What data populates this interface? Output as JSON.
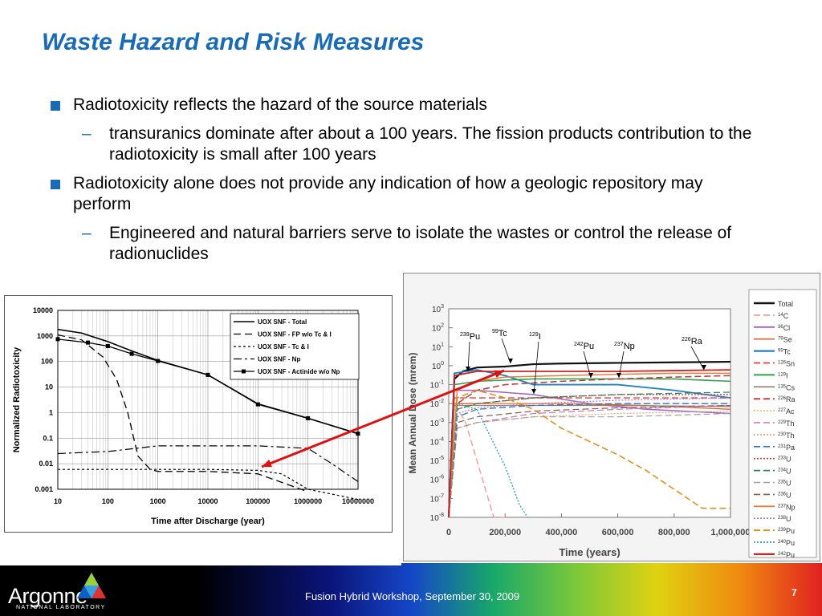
{
  "slide": {
    "title": "Waste Hazard and Risk Measures",
    "bullets": [
      {
        "text": "Radiotoxicity reflects the hazard of the source materials",
        "sub": [
          "transuranics dominate after about a 100 years. The fission products contribution to the radiotoxicity is small after 100 years"
        ]
      },
      {
        "text": "Radiotoxicity alone does not provide any indication of how a geologic repository may perform",
        "sub": [
          "Engineered and natural barriers serve to isolate the wastes or control the release of radionuclides"
        ]
      }
    ],
    "footer": {
      "logo": "Argonne",
      "logo_sub": "NATIONAL LABORATORY",
      "text": "Fusion Hybrid Workshop, September 30, 2009",
      "page": "7"
    },
    "colors": {
      "title": "#1a6bb5",
      "arrow": "#dd1111"
    }
  },
  "chart_data": [
    {
      "type": "line",
      "xlabel": "Time after Discharge (year)",
      "ylabel": "Normalized Radiotoxicity",
      "xscale": "log",
      "yscale": "log",
      "xlim": [
        10,
        10000000
      ],
      "ylim": [
        0.001,
        10000
      ],
      "x_ticks": [
        "10",
        "100",
        "1000",
        "10000",
        "100000",
        "1000000",
        "10000000"
      ],
      "y_ticks": [
        "0.001",
        "0.01",
        "0.1",
        "1",
        "10",
        "100",
        "1000",
        "10000"
      ],
      "legend_position": "top-right",
      "series": [
        {
          "name": "UOX SNF - Total",
          "x": [
            10,
            30,
            100,
            300,
            1000,
            10000,
            100000,
            1000000,
            10000000
          ],
          "y": [
            1800,
            1300,
            600,
            260,
            110,
            30,
            2.2,
            0.6,
            0.15
          ]
        },
        {
          "name": "UOX SNF - FP w/o Tc & I",
          "x": [
            10,
            30,
            80,
            150,
            250,
            400,
            700,
            1000,
            10000,
            100000,
            1000000
          ],
          "y": [
            1100,
            700,
            150,
            20,
            1,
            0.02,
            0.006,
            0.005,
            0.005,
            0.004,
            0.0008
          ]
        },
        {
          "name": "UOX SNF - Tc & I",
          "x": [
            10,
            1000,
            10000,
            100000,
            300000,
            1000000,
            10000000
          ],
          "y": [
            0.006,
            0.006,
            0.006,
            0.0055,
            0.004,
            0.001,
            0.0004
          ]
        },
        {
          "name": "UOX SNF - Np",
          "x": [
            10,
            100,
            1000,
            10000,
            100000,
            1000000,
            3000000,
            10000000
          ],
          "y": [
            0.025,
            0.03,
            0.05,
            0.05,
            0.05,
            0.04,
            0.01,
            0.002
          ]
        },
        {
          "name": "UOX SNF - Actinide w/o Np",
          "x": [
            10,
            40,
            100,
            300,
            1000,
            10000,
            100000,
            1000000,
            10000000
          ],
          "y": [
            750,
            550,
            400,
            200,
            105,
            30,
            2.1,
            0.6,
            0.15
          ]
        }
      ]
    },
    {
      "type": "line",
      "xlabel": "Time (years)",
      "ylabel": "Mean Annual Dose (mrem)",
      "yscale": "log",
      "xlim": [
        0,
        1000000
      ],
      "ylim": [
        1e-08,
        1000
      ],
      "x_ticks": [
        "0",
        "200,000",
        "400,000",
        "600,000",
        "800,000",
        "1,000,000"
      ],
      "y_tick_exponents": [
        3,
        2,
        1,
        0,
        -1,
        -2,
        -3,
        -4,
        -5,
        -6,
        -7,
        -8
      ],
      "legend_position": "right",
      "legend": [
        "Total",
        "14C",
        "36Cl",
        "79Se",
        "99Tc",
        "126Sn",
        "129I",
        "135Cs",
        "226Ra",
        "227Ac",
        "229Th",
        "230Th",
        "231Pa",
        "233U",
        "234U",
        "235U",
        "236U",
        "237Np",
        "238U",
        "239Pu",
        "240Pu",
        "242Pu"
      ],
      "annotations": [
        {
          "mass": "239",
          "sym": "Pu"
        },
        {
          "mass": "99",
          "sym": "Tc"
        },
        {
          "mass": "129",
          "sym": "I"
        },
        {
          "mass": "242",
          "sym": "Pu"
        },
        {
          "mass": "237",
          "sym": "Np"
        },
        {
          "mass": "226",
          "sym": "Ra"
        }
      ],
      "series": [
        {
          "name": "Total",
          "x": [
            0,
            20000,
            50000,
            100000,
            200000,
            300000,
            400000,
            600000,
            800000,
            1000000
          ],
          "y": [
            1e-08,
            0.2,
            0.5,
            0.8,
            0.9,
            1.2,
            1.3,
            1.4,
            1.5,
            1.6
          ]
        },
        {
          "name": "14C",
          "x": [
            0,
            20000,
            60000,
            120000,
            160000,
            200000
          ],
          "y": [
            1e-08,
            0.01,
            0.001,
            1e-06,
            1e-08,
            1e-09
          ]
        },
        {
          "name": "36Cl",
          "x": [
            0,
            20000,
            100000,
            300000,
            500000,
            700000,
            1000000
          ],
          "y": [
            1e-08,
            0.05,
            0.05,
            0.03,
            0.01,
            0.005,
            0.003
          ]
        },
        {
          "name": "79Se",
          "x": [
            0,
            20000,
            100000,
            200000,
            400000,
            700000,
            1000000
          ],
          "y": [
            1e-08,
            0.01,
            0.01,
            0.01,
            0.01,
            0.008,
            0.005
          ]
        },
        {
          "name": "99Tc",
          "x": [
            0,
            20000,
            100000,
            200000,
            300000,
            400000,
            600000,
            800000,
            1000000
          ],
          "y": [
            1e-08,
            0.4,
            0.6,
            0.3,
            0.1,
            0.1,
            0.1,
            0.05,
            0.02
          ]
        },
        {
          "name": "126Sn",
          "x": [
            0,
            20000,
            100000,
            300000,
            600000,
            1000000
          ],
          "y": [
            1e-08,
            0.02,
            0.02,
            0.02,
            0.02,
            0.02
          ]
        },
        {
          "name": "129I",
          "x": [
            0,
            20000,
            100000,
            300000,
            600000,
            800000,
            1000000
          ],
          "y": [
            1e-08,
            0.1,
            0.15,
            0.2,
            0.2,
            0.2,
            0.15
          ]
        },
        {
          "name": "135Cs",
          "x": [
            0,
            20000,
            100000,
            300000,
            600000,
            1000000
          ],
          "y": [
            1e-08,
            0.008,
            0.008,
            0.008,
            0.008,
            0.007
          ]
        },
        {
          "name": "226Ra",
          "x": [
            0,
            30000,
            100000,
            200000,
            400000,
            600000,
            800000,
            1000000
          ],
          "y": [
            1e-08,
            0.01,
            0.05,
            0.1,
            0.15,
            0.2,
            0.25,
            0.3
          ]
        },
        {
          "name": "227Ac",
          "x": [
            0,
            30000,
            100000,
            300000,
            600000,
            1000000
          ],
          "y": [
            1e-08,
            0.005,
            0.01,
            0.01,
            0.01,
            0.01
          ]
        },
        {
          "name": "229Th",
          "x": [
            0,
            30000,
            100000,
            300000,
            600000,
            1000000
          ],
          "y": [
            1e-08,
            0.0005,
            0.001,
            0.003,
            0.005,
            0.008
          ]
        },
        {
          "name": "230Th",
          "x": [
            0,
            30000,
            100000,
            300000,
            600000,
            1000000
          ],
          "y": [
            1e-08,
            0.0005,
            0.001,
            0.002,
            0.003,
            0.004
          ]
        },
        {
          "name": "231Pa",
          "x": [
            0,
            30000,
            100000,
            300000,
            600000,
            1000000
          ],
          "y": [
            1e-08,
            0.002,
            0.005,
            0.008,
            0.01,
            0.01
          ]
        },
        {
          "name": "233U",
          "x": [
            0,
            30000,
            100000,
            300000,
            600000,
            1000000
          ],
          "y": [
            1e-08,
            0.005,
            0.01,
            0.02,
            0.03,
            0.03
          ]
        },
        {
          "name": "234U",
          "x": [
            0,
            30000,
            100000,
            300000,
            600000,
            1000000
          ],
          "y": [
            1e-08,
            0.005,
            0.01,
            0.02,
            0.03,
            0.04
          ]
        },
        {
          "name": "235U",
          "x": [
            0,
            30000,
            100000,
            300000,
            600000,
            1000000
          ],
          "y": [
            1e-08,
            0.0005,
            0.001,
            0.002,
            0.002,
            0.003
          ]
        },
        {
          "name": "236U",
          "x": [
            0,
            30000,
            100000,
            300000,
            600000,
            1000000
          ],
          "y": [
            1e-08,
            0.001,
            0.002,
            0.004,
            0.006,
            0.008
          ]
        },
        {
          "name": "237Np",
          "x": [
            0,
            30000,
            100000,
            200000,
            400000,
            600000,
            800000,
            1000000
          ],
          "y": [
            1e-08,
            0.05,
            0.15,
            0.25,
            0.3,
            0.35,
            0.4,
            0.4
          ]
        },
        {
          "name": "238U",
          "x": [
            0,
            30000,
            100000,
            300000,
            600000,
            1000000
          ],
          "y": [
            1e-08,
            0.003,
            0.006,
            0.01,
            0.015,
            0.02
          ]
        },
        {
          "name": "239Pu",
          "x": [
            0,
            30000,
            100000,
            200000,
            300000,
            400000,
            500000,
            600000,
            700000,
            800000,
            900000,
            1000000
          ],
          "y": [
            1e-08,
            0.02,
            0.05,
            0.02,
            0.005,
            0.0005,
            0.0001,
            2e-05,
            3e-06,
            3e-07,
            3e-08,
            3e-08
          ]
        },
        {
          "name": "240Pu",
          "x": [
            0,
            30000,
            100000,
            200000,
            250000,
            280000
          ],
          "y": [
            1e-08,
            0.01,
            0.005,
            5e-06,
            5e-08,
            1e-09
          ]
        },
        {
          "name": "242Pu",
          "x": [
            0,
            20000,
            100000,
            200000,
            400000,
            600000,
            800000,
            1000000
          ],
          "y": [
            1e-08,
            0.3,
            0.5,
            0.5,
            0.5,
            0.5,
            0.55,
            0.6
          ]
        }
      ]
    }
  ]
}
